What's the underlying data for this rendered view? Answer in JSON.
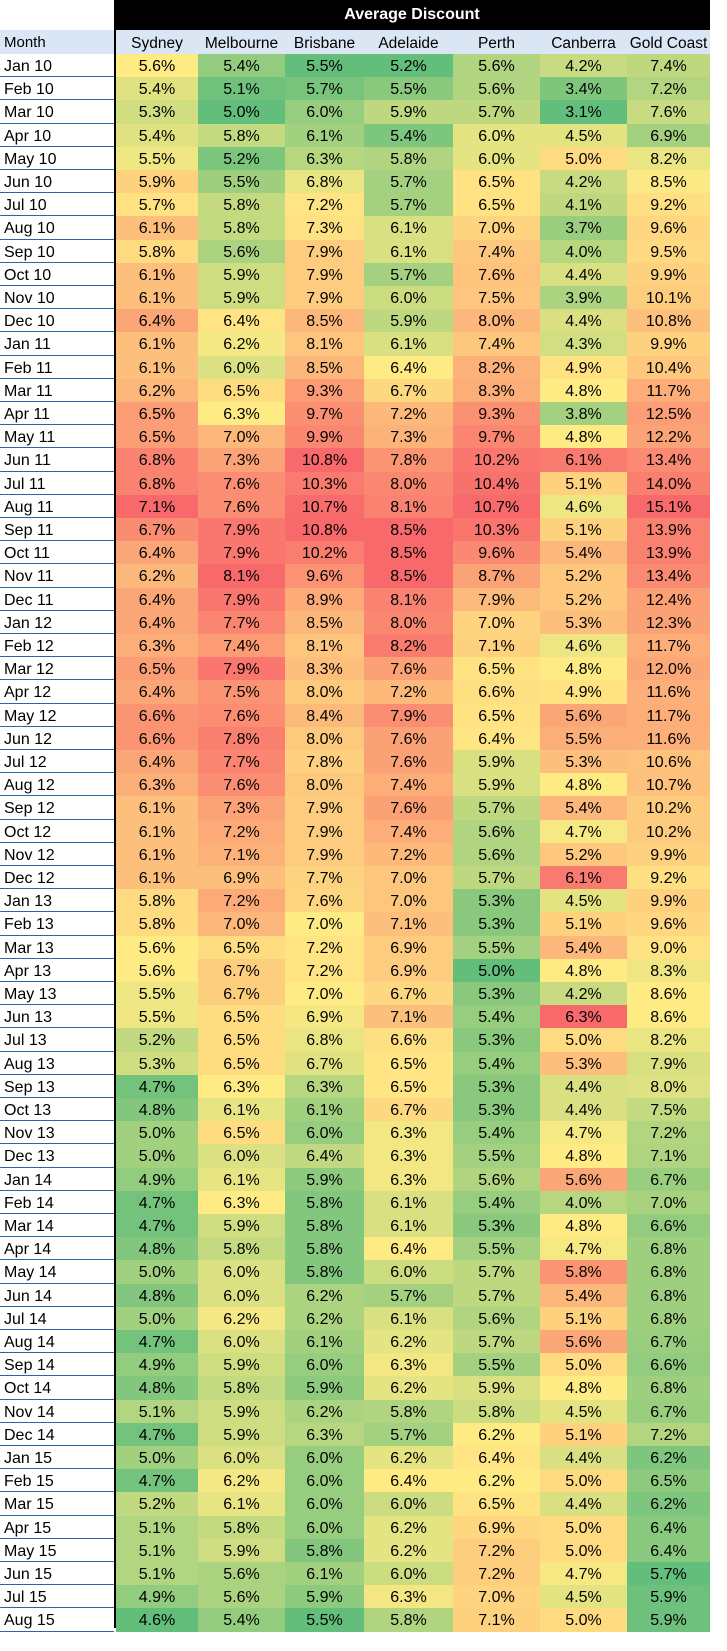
{
  "chart_data": {
    "type": "heatmap",
    "title": "Average Discount",
    "row_header": "Month",
    "columns": [
      "Sydney",
      "Melbourne",
      "Brisbane",
      "Adelaide",
      "Perth",
      "Canberra",
      "Gold Coast"
    ],
    "unit": "%",
    "color_scale": {
      "low": "#63be7b",
      "mid": "#ffeb84",
      "high": "#f8696b"
    },
    "rows": [
      {
        "month": "Jan 10",
        "values": [
          5.6,
          5.4,
          5.5,
          5.2,
          5.6,
          4.2,
          7.4
        ]
      },
      {
        "month": "Feb 10",
        "values": [
          5.4,
          5.1,
          5.7,
          5.5,
          5.6,
          3.4,
          7.2
        ]
      },
      {
        "month": "Mar 10",
        "values": [
          5.3,
          5.0,
          6.0,
          5.9,
          5.7,
          3.1,
          7.6
        ]
      },
      {
        "month": "Apr 10",
        "values": [
          5.4,
          5.8,
          6.1,
          5.4,
          6.0,
          4.5,
          6.9
        ]
      },
      {
        "month": "May 10",
        "values": [
          5.5,
          5.2,
          6.3,
          5.8,
          6.0,
          5.0,
          8.2
        ]
      },
      {
        "month": "Jun 10",
        "values": [
          5.9,
          5.5,
          6.8,
          5.7,
          6.5,
          4.2,
          8.5
        ]
      },
      {
        "month": "Jul 10",
        "values": [
          5.7,
          5.8,
          7.2,
          5.7,
          6.5,
          4.1,
          9.2
        ]
      },
      {
        "month": "Aug 10",
        "values": [
          6.1,
          5.8,
          7.3,
          6.1,
          7.0,
          3.7,
          9.6
        ]
      },
      {
        "month": "Sep 10",
        "values": [
          5.8,
          5.6,
          7.9,
          6.1,
          7.4,
          4.0,
          9.5
        ]
      },
      {
        "month": "Oct 10",
        "values": [
          6.1,
          5.9,
          7.9,
          5.7,
          7.6,
          4.4,
          9.9
        ]
      },
      {
        "month": "Nov 10",
        "values": [
          6.1,
          5.9,
          7.9,
          6.0,
          7.5,
          3.9,
          10.1
        ]
      },
      {
        "month": "Dec 10",
        "values": [
          6.4,
          6.4,
          8.5,
          5.9,
          8.0,
          4.4,
          10.8
        ]
      },
      {
        "month": "Jan 11",
        "values": [
          6.1,
          6.2,
          8.1,
          6.1,
          7.4,
          4.3,
          9.9
        ]
      },
      {
        "month": "Feb 11",
        "values": [
          6.1,
          6.0,
          8.5,
          6.4,
          8.2,
          4.9,
          10.4
        ]
      },
      {
        "month": "Mar 11",
        "values": [
          6.2,
          6.5,
          9.3,
          6.7,
          8.3,
          4.8,
          11.7
        ]
      },
      {
        "month": "Apr 11",
        "values": [
          6.5,
          6.3,
          9.7,
          7.2,
          9.3,
          3.8,
          12.5
        ]
      },
      {
        "month": "May 11",
        "values": [
          6.5,
          7.0,
          9.9,
          7.3,
          9.7,
          4.8,
          12.2
        ]
      },
      {
        "month": "Jun 11",
        "values": [
          6.8,
          7.3,
          10.8,
          7.8,
          10.2,
          6.1,
          13.4
        ]
      },
      {
        "month": "Jul 11",
        "values": [
          6.8,
          7.6,
          10.3,
          8.0,
          10.4,
          5.1,
          14.0
        ]
      },
      {
        "month": "Aug 11",
        "values": [
          7.1,
          7.6,
          10.7,
          8.1,
          10.7,
          4.6,
          15.1
        ]
      },
      {
        "month": "Sep 11",
        "values": [
          6.7,
          7.9,
          10.8,
          8.5,
          10.3,
          5.1,
          13.9
        ]
      },
      {
        "month": "Oct 11",
        "values": [
          6.4,
          7.9,
          10.2,
          8.5,
          9.6,
          5.4,
          13.9
        ]
      },
      {
        "month": "Nov 11",
        "values": [
          6.2,
          8.1,
          9.6,
          8.5,
          8.7,
          5.2,
          13.4
        ]
      },
      {
        "month": "Dec 11",
        "values": [
          6.4,
          7.9,
          8.9,
          8.1,
          7.9,
          5.2,
          12.4
        ]
      },
      {
        "month": "Jan 12",
        "values": [
          6.4,
          7.7,
          8.5,
          8.0,
          7.0,
          5.3,
          12.3
        ]
      },
      {
        "month": "Feb 12",
        "values": [
          6.3,
          7.4,
          8.1,
          8.2,
          7.1,
          4.6,
          11.7
        ]
      },
      {
        "month": "Mar 12",
        "values": [
          6.5,
          7.9,
          8.3,
          7.6,
          6.5,
          4.8,
          12.0
        ]
      },
      {
        "month": "Apr 12",
        "values": [
          6.4,
          7.5,
          8.0,
          7.2,
          6.6,
          4.9,
          11.6
        ]
      },
      {
        "month": "May 12",
        "values": [
          6.6,
          7.6,
          8.4,
          7.9,
          6.5,
          5.6,
          11.7
        ]
      },
      {
        "month": "Jun 12",
        "values": [
          6.6,
          7.8,
          8.0,
          7.6,
          6.4,
          5.5,
          11.6
        ]
      },
      {
        "month": "Jul 12",
        "values": [
          6.4,
          7.7,
          7.8,
          7.6,
          5.9,
          5.3,
          10.6
        ]
      },
      {
        "month": "Aug 12",
        "values": [
          6.3,
          7.6,
          8.0,
          7.4,
          5.9,
          4.8,
          10.7
        ]
      },
      {
        "month": "Sep 12",
        "values": [
          6.1,
          7.3,
          7.9,
          7.6,
          5.7,
          5.4,
          10.2
        ]
      },
      {
        "month": "Oct 12",
        "values": [
          6.1,
          7.2,
          7.9,
          7.4,
          5.6,
          4.7,
          10.2
        ]
      },
      {
        "month": "Nov 12",
        "values": [
          6.1,
          7.1,
          7.9,
          7.2,
          5.6,
          5.2,
          9.9
        ]
      },
      {
        "month": "Dec 12",
        "values": [
          6.1,
          6.9,
          7.7,
          7.0,
          5.7,
          6.1,
          9.2
        ]
      },
      {
        "month": "Jan 13",
        "values": [
          5.8,
          7.2,
          7.6,
          7.0,
          5.3,
          4.5,
          9.9
        ]
      },
      {
        "month": "Feb 13",
        "values": [
          5.8,
          7.0,
          7.0,
          7.1,
          5.3,
          5.1,
          9.6
        ]
      },
      {
        "month": "Mar 13",
        "values": [
          5.6,
          6.5,
          7.2,
          6.9,
          5.5,
          5.4,
          9.0
        ]
      },
      {
        "month": "Apr 13",
        "values": [
          5.6,
          6.7,
          7.2,
          6.9,
          5.0,
          4.8,
          8.3
        ]
      },
      {
        "month": "May 13",
        "values": [
          5.5,
          6.7,
          7.0,
          6.7,
          5.3,
          4.2,
          8.6
        ]
      },
      {
        "month": "Jun 13",
        "values": [
          5.5,
          6.5,
          6.9,
          7.1,
          5.4,
          6.3,
          8.6
        ]
      },
      {
        "month": "Jul 13",
        "values": [
          5.2,
          6.5,
          6.8,
          6.6,
          5.3,
          5.0,
          8.2
        ]
      },
      {
        "month": "Aug 13",
        "values": [
          5.3,
          6.5,
          6.7,
          6.5,
          5.4,
          5.3,
          7.9
        ]
      },
      {
        "month": "Sep 13",
        "values": [
          4.7,
          6.3,
          6.3,
          6.5,
          5.3,
          4.4,
          8.0
        ]
      },
      {
        "month": "Oct 13",
        "values": [
          4.8,
          6.1,
          6.1,
          6.7,
          5.3,
          4.4,
          7.5
        ]
      },
      {
        "month": "Nov 13",
        "values": [
          5.0,
          6.5,
          6.0,
          6.3,
          5.4,
          4.7,
          7.2
        ]
      },
      {
        "month": "Dec 13",
        "values": [
          5.0,
          6.0,
          6.4,
          6.3,
          5.5,
          4.8,
          7.1
        ]
      },
      {
        "month": "Jan 14",
        "values": [
          4.9,
          6.1,
          5.9,
          6.3,
          5.6,
          5.6,
          6.7
        ]
      },
      {
        "month": "Feb 14",
        "values": [
          4.7,
          6.3,
          5.8,
          6.1,
          5.4,
          4.0,
          7.0
        ]
      },
      {
        "month": "Mar 14",
        "values": [
          4.7,
          5.9,
          5.8,
          6.1,
          5.3,
          4.8,
          6.6
        ]
      },
      {
        "month": "Apr 14",
        "values": [
          4.8,
          5.8,
          5.8,
          6.4,
          5.5,
          4.7,
          6.8
        ]
      },
      {
        "month": "May 14",
        "values": [
          5.0,
          6.0,
          5.8,
          6.0,
          5.7,
          5.8,
          6.8
        ]
      },
      {
        "month": "Jun 14",
        "values": [
          4.8,
          6.0,
          6.2,
          5.7,
          5.7,
          5.4,
          6.8
        ]
      },
      {
        "month": "Jul 14",
        "values": [
          5.0,
          6.2,
          6.2,
          6.1,
          5.6,
          5.1,
          6.8
        ]
      },
      {
        "month": "Aug 14",
        "values": [
          4.7,
          6.0,
          6.1,
          6.2,
          5.7,
          5.6,
          6.7
        ]
      },
      {
        "month": "Sep 14",
        "values": [
          4.9,
          5.9,
          6.0,
          6.3,
          5.5,
          5.0,
          6.6
        ]
      },
      {
        "month": "Oct 14",
        "values": [
          4.8,
          5.8,
          5.9,
          6.2,
          5.9,
          4.8,
          6.8
        ]
      },
      {
        "month": "Nov 14",
        "values": [
          5.1,
          5.9,
          6.2,
          5.8,
          5.8,
          4.5,
          6.7
        ]
      },
      {
        "month": "Dec 14",
        "values": [
          4.7,
          5.9,
          6.3,
          5.7,
          6.2,
          5.1,
          7.2
        ]
      },
      {
        "month": "Jan 15",
        "values": [
          5.0,
          6.0,
          6.0,
          6.2,
          6.4,
          4.4,
          6.2
        ]
      },
      {
        "month": "Feb 15",
        "values": [
          4.7,
          6.2,
          6.0,
          6.4,
          6.2,
          5.0,
          6.5
        ]
      },
      {
        "month": "Mar 15",
        "values": [
          5.2,
          6.1,
          6.0,
          6.0,
          6.5,
          4.4,
          6.2
        ]
      },
      {
        "month": "Apr 15",
        "values": [
          5.1,
          5.8,
          6.0,
          6.2,
          6.9,
          5.0,
          6.4
        ]
      },
      {
        "month": "May 15",
        "values": [
          5.1,
          5.9,
          5.8,
          6.2,
          7.2,
          5.0,
          6.4
        ]
      },
      {
        "month": "Jun 15",
        "values": [
          5.1,
          5.6,
          6.1,
          6.0,
          7.2,
          4.7,
          5.7
        ]
      },
      {
        "month": "Jul 15",
        "values": [
          4.9,
          5.6,
          5.9,
          6.3,
          7.0,
          4.5,
          5.9
        ]
      },
      {
        "month": "Aug 15",
        "values": [
          4.6,
          5.4,
          5.5,
          5.8,
          7.1,
          5.0,
          5.9
        ]
      }
    ]
  }
}
